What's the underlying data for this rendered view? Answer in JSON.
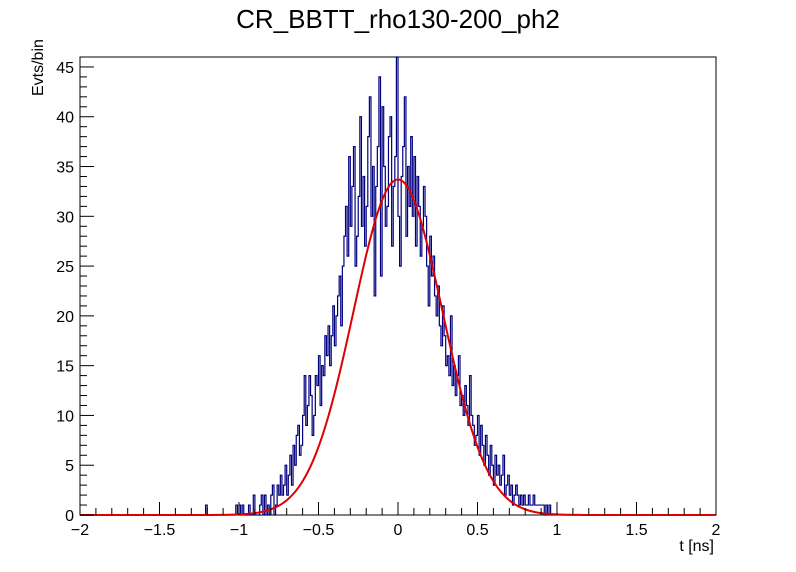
{
  "chart_data": {
    "type": "histogram",
    "title": "CR_BBTT_rho130-200_ph2",
    "xlabel": "t [ns]",
    "ylabel": "Evts/bin",
    "xlim": [
      -2,
      2
    ],
    "ylim": [
      0,
      46
    ],
    "bin_width": 0.01,
    "x_ticks": [
      "−2",
      "−1.5",
      "−1",
      "−0.5",
      "0",
      "0.5",
      "1",
      "1.5",
      "2"
    ],
    "y_ticks": [
      "0",
      "5",
      "10",
      "15",
      "20",
      "25",
      "30",
      "35",
      "40",
      "45"
    ],
    "grid": false,
    "legend": false,
    "colors": {
      "histogram": "#00007f",
      "fit": "#e00000"
    },
    "series": [
      {
        "type": "histogram",
        "bin_centers": [
          -1.205,
          -1.015,
          -0.995,
          -0.975,
          -0.935,
          -0.905,
          -0.865,
          -0.855,
          -0.835,
          -0.815,
          -0.795,
          -0.785,
          -0.765,
          -0.755,
          -0.745,
          -0.735,
          -0.725,
          -0.715,
          -0.705,
          -0.695,
          -0.685,
          -0.675,
          -0.665,
          -0.655,
          -0.645,
          -0.635,
          -0.625,
          -0.615,
          -0.605,
          -0.595,
          -0.585,
          -0.575,
          -0.565,
          -0.555,
          -0.545,
          -0.535,
          -0.525,
          -0.515,
          -0.505,
          -0.495,
          -0.485,
          -0.475,
          -0.465,
          -0.455,
          -0.445,
          -0.435,
          -0.425,
          -0.415,
          -0.405,
          -0.395,
          -0.385,
          -0.375,
          -0.365,
          -0.355,
          -0.345,
          -0.335,
          -0.325,
          -0.315,
          -0.305,
          -0.295,
          -0.285,
          -0.275,
          -0.265,
          -0.255,
          -0.245,
          -0.235,
          -0.225,
          -0.215,
          -0.205,
          -0.195,
          -0.185,
          -0.175,
          -0.165,
          -0.155,
          -0.145,
          -0.135,
          -0.125,
          -0.115,
          -0.105,
          -0.095,
          -0.085,
          -0.075,
          -0.065,
          -0.055,
          -0.045,
          -0.035,
          -0.025,
          -0.015,
          -0.005,
          0.005,
          0.015,
          0.025,
          0.035,
          0.045,
          0.055,
          0.065,
          0.075,
          0.085,
          0.095,
          0.105,
          0.115,
          0.125,
          0.135,
          0.145,
          0.155,
          0.165,
          0.175,
          0.185,
          0.195,
          0.205,
          0.215,
          0.225,
          0.235,
          0.245,
          0.255,
          0.265,
          0.275,
          0.285,
          0.295,
          0.305,
          0.315,
          0.325,
          0.335,
          0.345,
          0.355,
          0.365,
          0.375,
          0.385,
          0.395,
          0.405,
          0.415,
          0.425,
          0.435,
          0.445,
          0.455,
          0.465,
          0.475,
          0.485,
          0.495,
          0.505,
          0.515,
          0.525,
          0.535,
          0.545,
          0.555,
          0.565,
          0.575,
          0.585,
          0.595,
          0.605,
          0.615,
          0.625,
          0.635,
          0.645,
          0.655,
          0.665,
          0.675,
          0.685,
          0.695,
          0.705,
          0.715,
          0.725,
          0.735,
          0.745,
          0.755,
          0.765,
          0.775,
          0.785,
          0.795,
          0.805,
          0.815,
          0.825,
          0.835,
          0.845,
          0.855,
          0.865,
          0.875,
          0.885,
          0.895,
          0.905,
          0.915,
          0.935,
          0.955,
          0.985,
          1.015,
          1.045,
          1.215
        ],
        "counts": [
          1,
          1,
          1,
          1,
          1,
          2,
          1,
          2,
          2,
          1,
          2,
          3,
          1,
          3,
          2,
          4,
          2,
          3,
          5,
          2,
          4,
          6,
          3,
          7,
          5,
          8,
          9,
          6,
          7,
          10,
          14,
          9,
          11,
          14,
          12,
          8,
          10,
          14,
          13,
          16,
          11,
          15,
          14,
          18,
          16,
          19,
          15,
          18,
          21,
          17,
          20,
          22,
          24,
          19,
          25,
          28,
          31,
          26,
          36,
          29,
          33,
          37,
          25,
          28,
          32,
          40,
          29,
          34,
          27,
          31,
          38,
          42,
          30,
          35,
          22,
          33,
          37,
          44,
          24,
          41,
          35,
          29,
          31,
          38,
          40,
          27,
          33,
          36,
          46,
          30,
          25,
          34,
          37,
          42,
          28,
          35,
          31,
          38,
          30,
          36,
          27,
          34,
          31,
          26,
          29,
          33,
          30,
          25,
          21,
          28,
          24,
          26,
          22,
          20,
          23,
          19,
          17,
          21,
          18,
          15,
          16,
          14,
          20,
          13,
          15,
          12,
          14,
          16,
          11,
          12,
          10,
          13,
          11,
          9,
          14,
          10,
          9,
          7,
          8,
          10,
          6,
          9,
          7,
          5,
          8,
          6,
          4,
          7,
          5,
          3,
          6,
          4,
          5,
          3,
          4,
          6,
          2,
          3,
          4,
          2,
          3,
          1,
          2,
          3,
          2,
          1,
          2,
          1,
          2,
          1,
          1,
          2,
          1,
          1,
          2,
          1,
          1,
          1,
          1,
          1,
          1,
          1,
          1
        ]
      },
      {
        "type": "gaussian-fit",
        "amplitude": 33.7,
        "mean": 0.0,
        "sigma": 0.28
      }
    ]
  }
}
